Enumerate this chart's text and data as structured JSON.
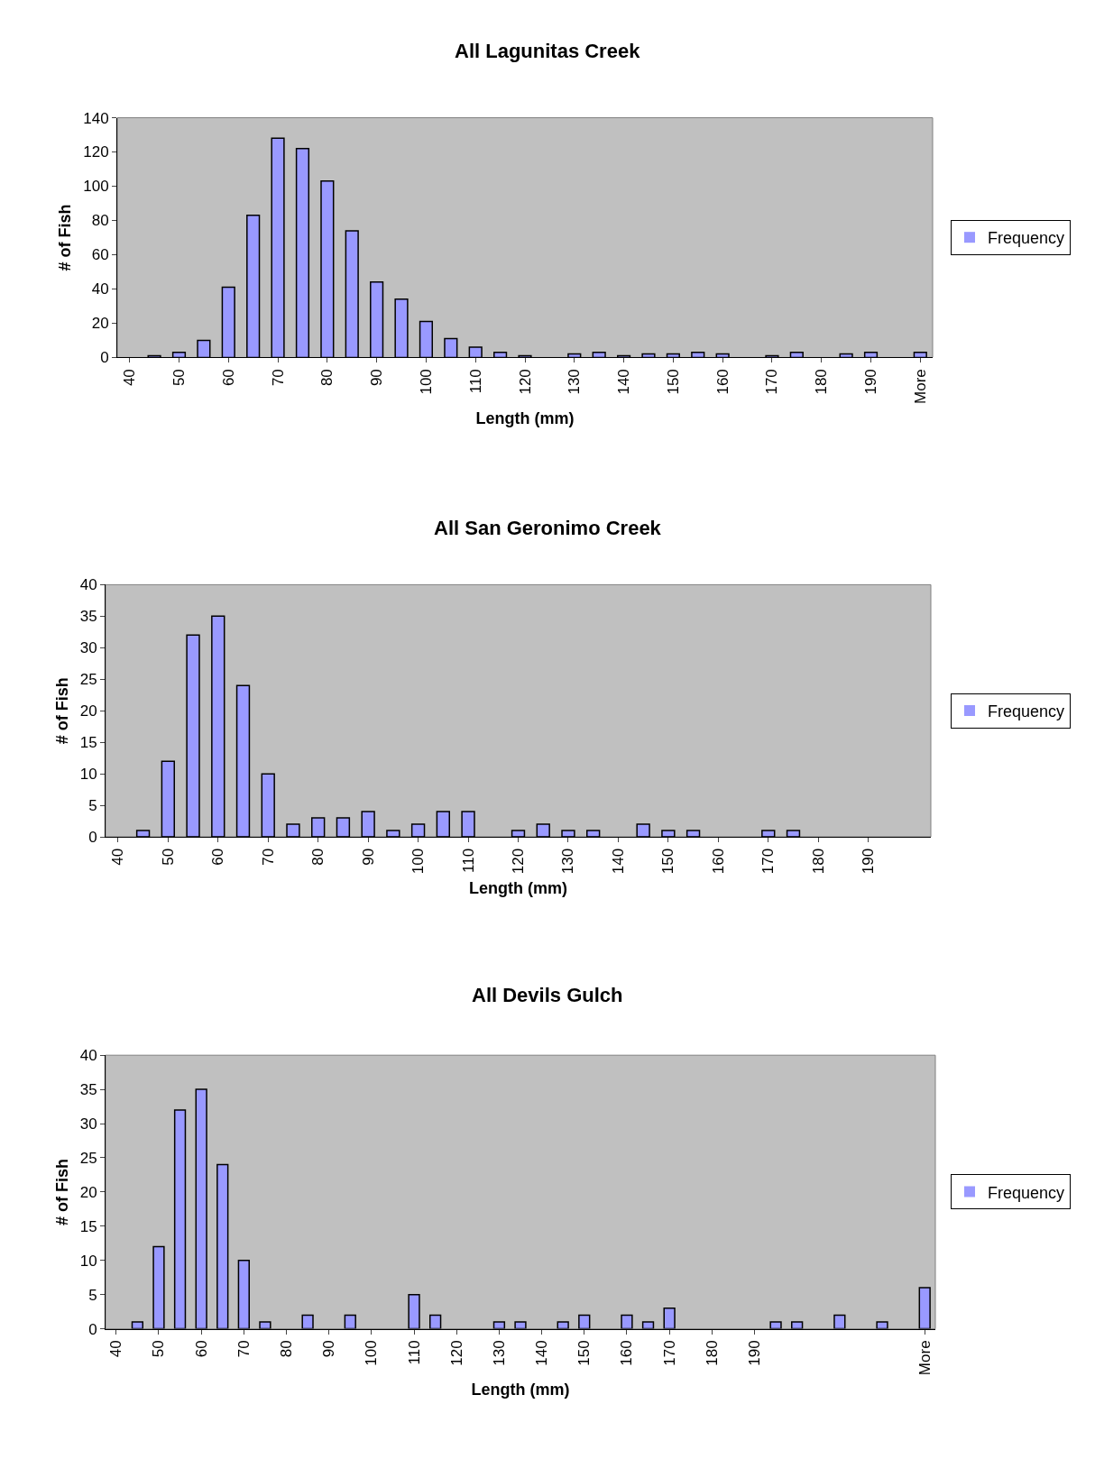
{
  "chart_data": [
    {
      "type": "bar",
      "title": "All Lagunitas Creek",
      "xlabel": "Length (mm)",
      "ylabel": "# of Fish",
      "legend": "right",
      "categories": [
        "40",
        null,
        "50",
        null,
        "60",
        null,
        "70",
        null,
        "80",
        null,
        "90",
        null,
        "100",
        null,
        "110",
        null,
        "120",
        null,
        "130",
        null,
        "140",
        null,
        "150",
        null,
        "160",
        null,
        "170",
        null,
        "180",
        null,
        "190",
        null,
        "More"
      ],
      "series": [
        {
          "name": "Frequency",
          "color": "#9999ff",
          "values": [
            0,
            1,
            3,
            10,
            41,
            83,
            128,
            122,
            103,
            74,
            44,
            34,
            21,
            11,
            6,
            3,
            1,
            0,
            2,
            3,
            1,
            2,
            2,
            3,
            2,
            0,
            1,
            3,
            0,
            2,
            3,
            0,
            3
          ]
        }
      ],
      "ylim": [
        0,
        140
      ],
      "yticks": [
        0,
        20,
        40,
        60,
        80,
        100,
        120,
        140
      ]
    },
    {
      "type": "bar",
      "title": "All San Geronimo Creek",
      "xlabel": "Length (mm)",
      "ylabel": "# of Fish",
      "legend": "right",
      "categories": [
        "40",
        null,
        "50",
        null,
        "60",
        null,
        "70",
        null,
        "80",
        null,
        "90",
        null,
        "100",
        null,
        "110",
        null,
        "120",
        null,
        "130",
        null,
        "140",
        null,
        "150",
        null,
        "160",
        null,
        "170",
        null,
        "180",
        null,
        "190",
        null,
        null
      ],
      "series": [
        {
          "name": "Frequency",
          "color": "#9999ff",
          "values": [
            0,
            1,
            12,
            32,
            35,
            24,
            10,
            2,
            3,
            3,
            4,
            1,
            2,
            4,
            4,
            0,
            1,
            2,
            1,
            1,
            0,
            2,
            1,
            1,
            0,
            0,
            1,
            1,
            0,
            0,
            0,
            0,
            0
          ]
        }
      ],
      "ylim": [
        0,
        40
      ],
      "yticks": [
        0,
        5,
        10,
        15,
        20,
        25,
        30,
        35,
        40
      ]
    },
    {
      "type": "bar",
      "title": "All Devils Gulch",
      "xlabel": "Length (mm)",
      "ylabel": "# of Fish",
      "legend": "right",
      "categories": [
        "40",
        null,
        "50",
        null,
        "60",
        null,
        "70",
        null,
        "80",
        null,
        "90",
        null,
        "100",
        null,
        "110",
        null,
        "120",
        null,
        "130",
        null,
        "140",
        null,
        "150",
        null,
        "160",
        null,
        "170",
        null,
        "180",
        null,
        "190",
        null,
        null,
        null,
        null,
        null,
        null,
        null,
        "More"
      ],
      "series": [
        {
          "name": "Frequency",
          "color": "#9999ff",
          "values": [
            0,
            1,
            12,
            32,
            35,
            24,
            10,
            1,
            0,
            2,
            0,
            2,
            0,
            0,
            5,
            2,
            0,
            0,
            1,
            1,
            0,
            1,
            2,
            0,
            2,
            1,
            3,
            0,
            0,
            0,
            0,
            1,
            1,
            0,
            2,
            0,
            1,
            0,
            6
          ]
        }
      ],
      "ylim": [
        0,
        40
      ],
      "yticks": [
        0,
        5,
        10,
        15,
        20,
        25,
        30,
        35,
        40
      ]
    }
  ]
}
